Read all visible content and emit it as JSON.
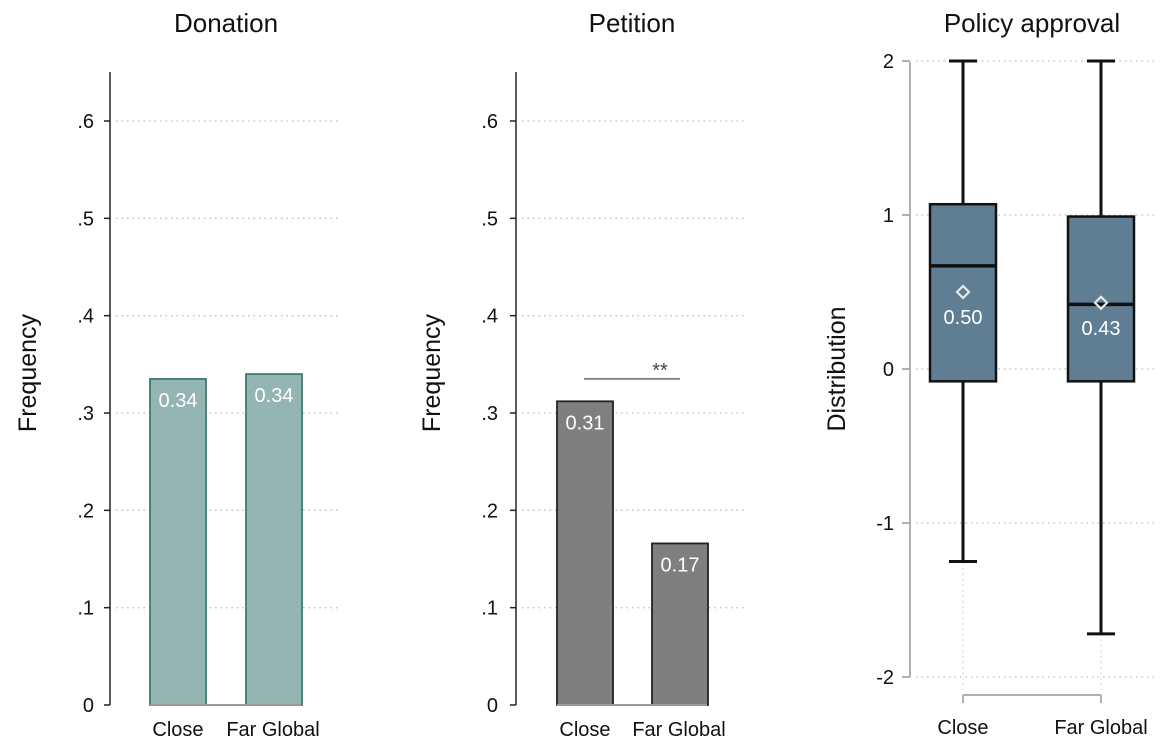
{
  "chart_data": [
    {
      "type": "bar",
      "title": "Donation",
      "ylabel": "Frequency",
      "xlabel": "",
      "categories": [
        "Close",
        "Far Global"
      ],
      "values": [
        0.335,
        0.34
      ],
      "value_labels": [
        "0.34",
        "0.34"
      ],
      "yticks": [
        0,
        0.1,
        0.2,
        0.3,
        0.4,
        0.5,
        0.6
      ],
      "ytick_labels": [
        "0",
        ".1",
        ".2",
        ".3",
        ".4",
        ".5",
        ".6"
      ],
      "ylim": [
        0,
        0.6
      ],
      "grid": true,
      "bar_fill": "#95b5b2",
      "bar_stroke": "#3f7a72"
    },
    {
      "type": "bar",
      "title": "Petition",
      "ylabel": "Frequency",
      "xlabel": "",
      "categories": [
        "Close",
        "Far Global"
      ],
      "values": [
        0.312,
        0.166
      ],
      "value_labels": [
        "0.31",
        "0.17"
      ],
      "yticks": [
        0,
        0.1,
        0.2,
        0.3,
        0.4,
        0.5,
        0.6
      ],
      "ytick_labels": [
        "0",
        ".1",
        ".2",
        ".3",
        ".4",
        ".5",
        ".6"
      ],
      "ylim": [
        0,
        0.6
      ],
      "grid": true,
      "bar_fill": "#7f7f7f",
      "bar_stroke": "#222222",
      "significance": {
        "label": "**",
        "y": 0.335
      }
    },
    {
      "type": "box",
      "title": "Policy approval",
      "ylabel": "Distribution",
      "xlabel": "",
      "categories": [
        "Close",
        "Far Global"
      ],
      "boxes": [
        {
          "whisker_low": -1.25,
          "q1": -0.08,
          "median": 0.67,
          "q3": 1.07,
          "whisker_high": 2.0,
          "mean": 0.5,
          "mean_label": "0.50"
        },
        {
          "whisker_low": -1.72,
          "q1": -0.08,
          "median": 0.42,
          "q3": 0.99,
          "whisker_high": 2.0,
          "mean": 0.43,
          "mean_label": "0.43"
        }
      ],
      "yticks": [
        -2,
        -1,
        0,
        1,
        2
      ],
      "ytick_labels": [
        "-2",
        "-1",
        "0",
        "1",
        "2"
      ],
      "ylim": [
        -2,
        2
      ],
      "grid": true,
      "box_fill": "#5f7d93",
      "box_stroke": "#111111"
    }
  ]
}
